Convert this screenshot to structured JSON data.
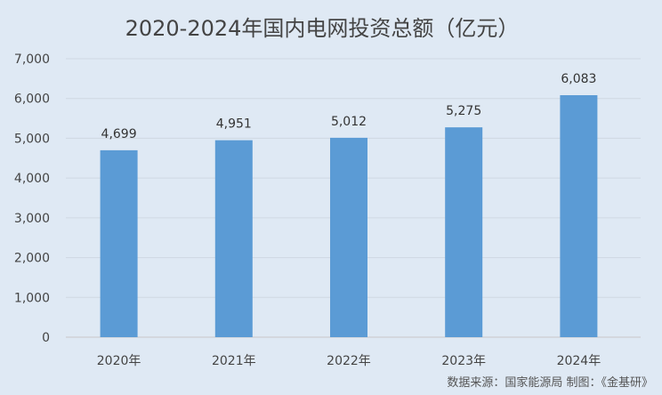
{
  "chart_data": {
    "type": "bar",
    "title": "2020-2024年国内电网投资总额（亿元）",
    "categories": [
      "2020年",
      "2021年",
      "2022年",
      "2023年",
      "2024年"
    ],
    "values": [
      4699,
      4951,
      5012,
      5275,
      6083
    ],
    "data_labels": [
      "4,699",
      "4,951",
      "5,012",
      "5,275",
      "6,083"
    ],
    "ylim": [
      0,
      7000
    ],
    "yticks": [
      "0",
      "1,000",
      "2,000",
      "3,000",
      "4,000",
      "5,000",
      "6,000",
      "7,000"
    ],
    "grid": true,
    "bar_color": "#5b9bd5",
    "source": "数据来源：国家能源局   制图：《金基研》"
  }
}
